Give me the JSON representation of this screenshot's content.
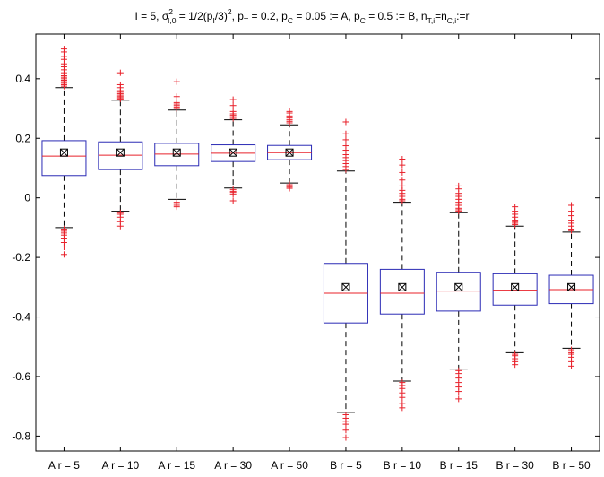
{
  "chart_data": {
    "type": "boxplot",
    "title_parts": {
      "i1": "I = 5, ",
      "sigma": "σ",
      "sigma_sup": "2",
      "sigma_sub": "I,0",
      "i2": " = 1/2(p",
      "p_sub": "I",
      "i3": "/3)",
      "sq_sup": "2",
      "i4": ", p",
      "t_sub": "T",
      "i5": " = 0.2, p",
      "c_sub1": "C",
      "i6": " = 0.05 := A,  p",
      "c_sub2": "C",
      "i7": " = 0.5 := B, n",
      "n_sub1": "T,i",
      "i8": "=n",
      "n_sub2": "C,i",
      "i9": ":=r"
    },
    "ylim": [
      -0.85,
      0.55
    ],
    "yticks": [
      {
        "value": 0.4,
        "label": "0.4"
      },
      {
        "value": 0.2,
        "label": "0.2"
      },
      {
        "value": 0,
        "label": "0"
      },
      {
        "value": -0.2,
        "label": "-0.2"
      },
      {
        "value": -0.4,
        "label": "-0.4"
      },
      {
        "value": -0.6,
        "label": "-0.6"
      },
      {
        "value": -0.8,
        "label": "-0.8"
      }
    ],
    "categories": [
      "A r = 5",
      "A r = 10",
      "A r = 15",
      "A r = 30",
      "A r = 50",
      "B r = 5",
      "B r = 10",
      "B r = 15",
      "B r = 30",
      "B r = 50"
    ],
    "colors": {
      "box": "#2b2bb5",
      "median": "#e8202a",
      "outlier": "#e8202a",
      "whisker": "#000000"
    },
    "boxes": [
      {
        "label": "A r = 5",
        "whisker_low": -0.1,
        "q1": 0.075,
        "median": 0.14,
        "q3": 0.192,
        "whisker_high": 0.37,
        "mean": 0.152,
        "outliers": [
          -0.105,
          -0.112,
          -0.118,
          -0.125,
          -0.135,
          -0.15,
          -0.165,
          -0.19,
          0.375,
          0.38,
          0.385,
          0.39,
          0.395,
          0.4,
          0.405,
          0.41,
          0.42,
          0.43,
          0.44,
          0.45,
          0.465,
          0.475,
          0.49,
          0.5
        ]
      },
      {
        "label": "A r = 10",
        "whisker_low": -0.045,
        "q1": 0.095,
        "median": 0.143,
        "q3": 0.188,
        "whisker_high": 0.328,
        "mean": 0.152,
        "outliers": [
          -0.05,
          -0.055,
          -0.065,
          -0.08,
          -0.095,
          0.332,
          0.336,
          0.34,
          0.345,
          0.35,
          0.355,
          0.36,
          0.37,
          0.38,
          0.42
        ]
      },
      {
        "label": "A r = 15",
        "whisker_low": -0.005,
        "q1": 0.108,
        "median": 0.147,
        "q3": 0.183,
        "whisker_high": 0.295,
        "mean": 0.152,
        "outliers": [
          -0.015,
          -0.02,
          -0.025,
          -0.03,
          0.3,
          0.305,
          0.31,
          0.315,
          0.32,
          0.34,
          0.39
        ]
      },
      {
        "label": "A r = 30",
        "whisker_low": 0.033,
        "q1": 0.122,
        "median": 0.15,
        "q3": 0.178,
        "whisker_high": 0.262,
        "mean": 0.152,
        "outliers": [
          0.028,
          0.022,
          0.018,
          0.012,
          -0.01,
          0.267,
          0.272,
          0.277,
          0.282,
          0.29,
          0.31,
          0.33
        ]
      },
      {
        "label": "A r = 50",
        "whisker_low": 0.05,
        "q1": 0.128,
        "median": 0.152,
        "q3": 0.176,
        "whisker_high": 0.245,
        "mean": 0.152,
        "outliers": [
          0.044,
          0.04,
          0.036,
          0.032,
          0.252,
          0.257,
          0.262,
          0.268,
          0.275,
          0.285,
          0.29
        ]
      },
      {
        "label": "B r = 5",
        "whisker_low": -0.72,
        "q1": -0.42,
        "median": -0.32,
        "q3": -0.22,
        "whisker_high": 0.09,
        "mean": -0.3,
        "outliers": [
          -0.728,
          -0.74,
          -0.75,
          -0.76,
          -0.78,
          -0.805,
          0.095,
          0.105,
          0.115,
          0.125,
          0.135,
          0.145,
          0.16,
          0.175,
          0.195,
          0.215,
          0.255
        ]
      },
      {
        "label": "B r = 10",
        "whisker_low": -0.615,
        "q1": -0.39,
        "median": -0.32,
        "q3": -0.24,
        "whisker_high": -0.015,
        "mean": -0.3,
        "outliers": [
          -0.62,
          -0.63,
          -0.64,
          -0.655,
          -0.67,
          -0.69,
          -0.705,
          -0.01,
          -0.005,
          0.005,
          0.015,
          0.025,
          0.04,
          0.06,
          0.085,
          0.11,
          0.13
        ]
      },
      {
        "label": "B r = 15",
        "whisker_low": -0.575,
        "q1": -0.38,
        "median": -0.313,
        "q3": -0.25,
        "whisker_high": -0.05,
        "mean": -0.3,
        "outliers": [
          -0.58,
          -0.59,
          -0.605,
          -0.62,
          -0.635,
          -0.65,
          -0.675,
          -0.045,
          -0.04,
          -0.035,
          -0.025,
          -0.015,
          -0.005,
          0.005,
          0.015,
          0.03,
          0.04
        ]
      },
      {
        "label": "B r = 30",
        "whisker_low": -0.52,
        "q1": -0.36,
        "median": -0.31,
        "q3": -0.255,
        "whisker_high": -0.095,
        "mean": -0.3,
        "outliers": [
          -0.525,
          -0.53,
          -0.54,
          -0.55,
          -0.56,
          -0.09,
          -0.085,
          -0.08,
          -0.075,
          -0.065,
          -0.055,
          -0.045,
          -0.03
        ]
      },
      {
        "label": "B r = 50",
        "whisker_low": -0.505,
        "q1": -0.355,
        "median": -0.308,
        "q3": -0.26,
        "whisker_high": -0.115,
        "mean": -0.3,
        "outliers": [
          -0.51,
          -0.52,
          -0.525,
          -0.535,
          -0.55,
          -0.565,
          -0.11,
          -0.105,
          -0.095,
          -0.085,
          -0.075,
          -0.06,
          -0.045,
          -0.025
        ]
      }
    ]
  }
}
